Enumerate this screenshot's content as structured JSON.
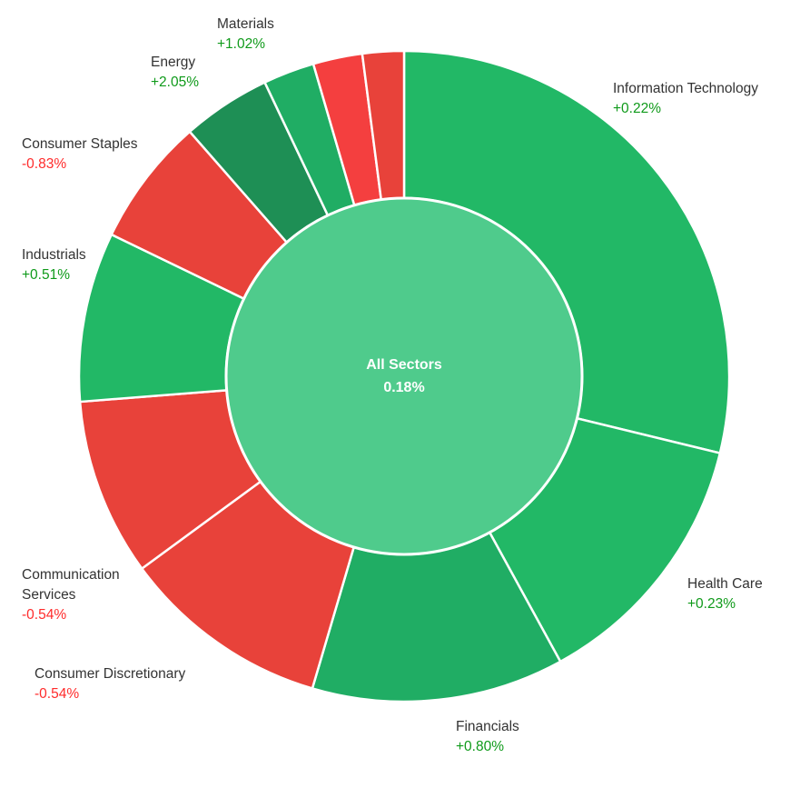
{
  "chart_data": {
    "type": "sunburst",
    "center": {
      "label": "All Sectors",
      "change": "0.18%"
    },
    "colors": {
      "positive_dark": "#1e8f55",
      "positive": "#22b866",
      "positive_light": "#4fcb8c",
      "negative": "#e8423a",
      "negative_bright": "#f43f3f"
    },
    "sectors": [
      {
        "name": "Information Technology",
        "change": "+0.22%",
        "weight": 29.4
      },
      {
        "name": "Health Care",
        "change": "+0.23%",
        "weight": 13.5
      },
      {
        "name": "Financials",
        "change": "+0.80%",
        "weight": 12.8
      },
      {
        "name": "Consumer Discretionary",
        "change": "-0.54%",
        "weight": 10.6
      },
      {
        "name": "Communication Services",
        "change": "-0.54%",
        "weight": 9.0
      },
      {
        "name": "Industrials",
        "change": "+0.51%",
        "weight": 8.6
      },
      {
        "name": "Consumer Staples",
        "change": "-0.83%",
        "weight": 6.5
      },
      {
        "name": "Energy",
        "change": "+2.05%",
        "weight": 4.5
      },
      {
        "name": "Materials",
        "change": "+1.02%",
        "weight": 2.6
      },
      {
        "name": "",
        "change": "",
        "weight": 2.5
      },
      {
        "name": "",
        "change": "",
        "weight": 2.1
      }
    ]
  }
}
